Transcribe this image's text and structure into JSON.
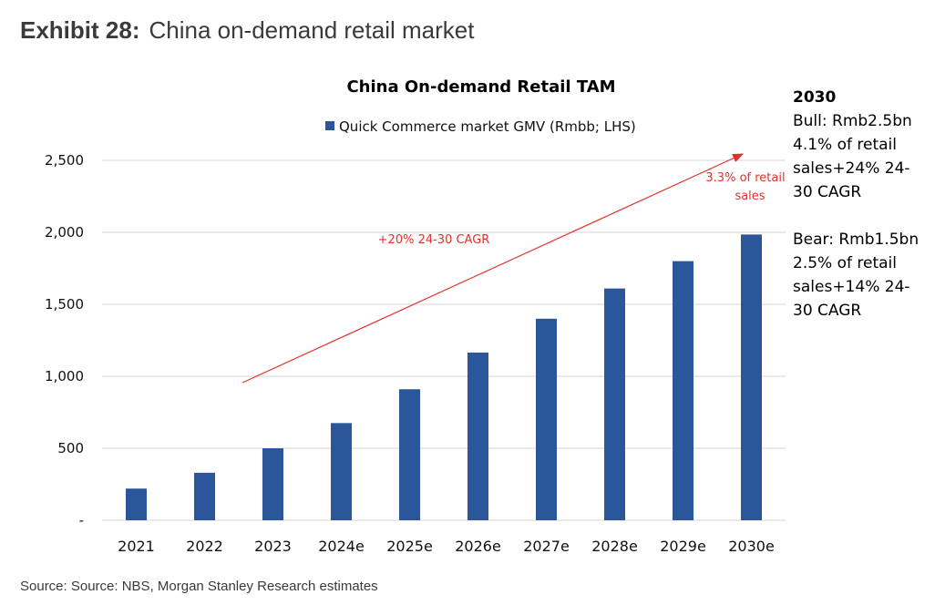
{
  "header": {
    "exhibit_label": "Exhibit 28:",
    "exhibit_title": "China on-demand retail market"
  },
  "chart_data": {
    "type": "bar",
    "title": "China On-demand Retail TAM",
    "categories": [
      "2021",
      "2022",
      "2023",
      "2024e",
      "2025e",
      "2026e",
      "2027e",
      "2028e",
      "2029e",
      "2030e"
    ],
    "series": [
      {
        "name": "Quick Commerce market GMV (Rmbb; LHS)",
        "values": [
          220,
          330,
          500,
          675,
          910,
          1165,
          1400,
          1610,
          1800,
          1985
        ],
        "color": "#2b579a"
      }
    ],
    "ylim": [
      0,
      2500
    ],
    "yticks": [
      "-",
      "500",
      "1,000",
      "1,500",
      "2,000",
      "2,500"
    ],
    "ytick_values": [
      0,
      500,
      1000,
      1500,
      2000,
      2500
    ],
    "grid": true,
    "legend": "top-center",
    "annotations": {
      "cagr": "+20% 24-30 CAGR",
      "retail_share_line1": "3.3% of retail",
      "retail_share_line2": "sales",
      "arrow_color": "#e0322a"
    }
  },
  "scenarios": {
    "year": "2030",
    "bull": [
      "Bull: Rmb2.5bn",
      "4.1% of retail",
      "sales+24% 24-",
      "30 CAGR"
    ],
    "bear": [
      "Bear: Rmb1.5bn",
      "2.5% of retail",
      "sales+14% 24-",
      "30 CAGR"
    ]
  },
  "footer": {
    "source": "Source: Source: NBS, Morgan Stanley Research estimates"
  }
}
